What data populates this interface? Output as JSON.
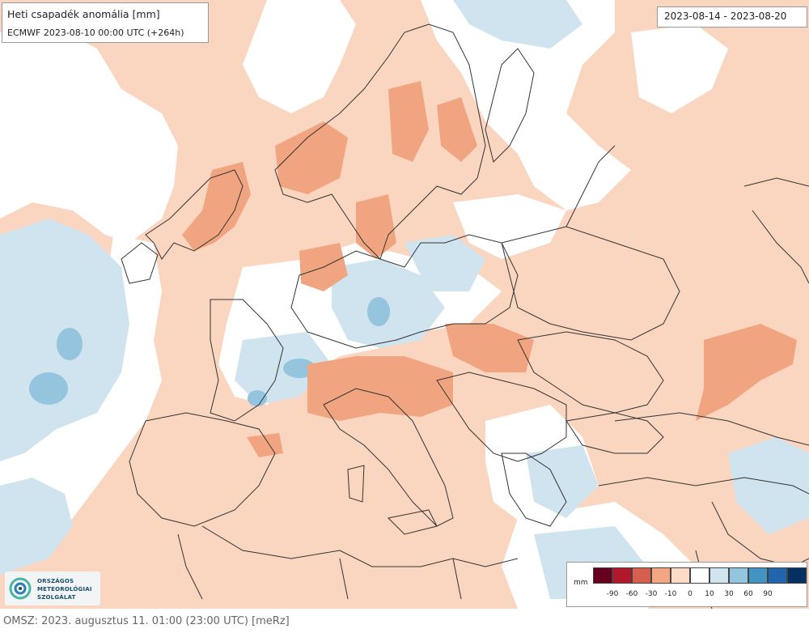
{
  "title": "Heti csapadék anomália [mm]",
  "subtitle": "ECMWF 2023-08-10 00:00 UTC (+264h)",
  "date_range": "2023-08-14 - 2023-08-20",
  "legend": {
    "unit": "mm",
    "colors": [
      "#67001f",
      "#b2182b",
      "#d6604d",
      "#f4a582",
      "#fddbc7",
      "#ffffff",
      "#d1e5f0",
      "#92c5de",
      "#4393c3",
      "#2166ac",
      "#053061"
    ],
    "labels": [
      "-90",
      "-60",
      "-30",
      "-10",
      "0",
      "10",
      "30",
      "60",
      "90"
    ]
  },
  "logo": {
    "lines": [
      "ORSZÁGOS",
      "METEOROLÓGIAI",
      "SZOLGÁLAT"
    ]
  },
  "footer": "OMSZ: 2023. augusztus 11. 01:00 (23:00 UTC) [meRz]",
  "map_colors": {
    "dry_light": "#fad5c0",
    "dry_medium": "#f0a580",
    "normal": "#ffffff",
    "wet_light": "#cfe4ef",
    "wet_medium": "#94c4de",
    "border": "#333333"
  }
}
